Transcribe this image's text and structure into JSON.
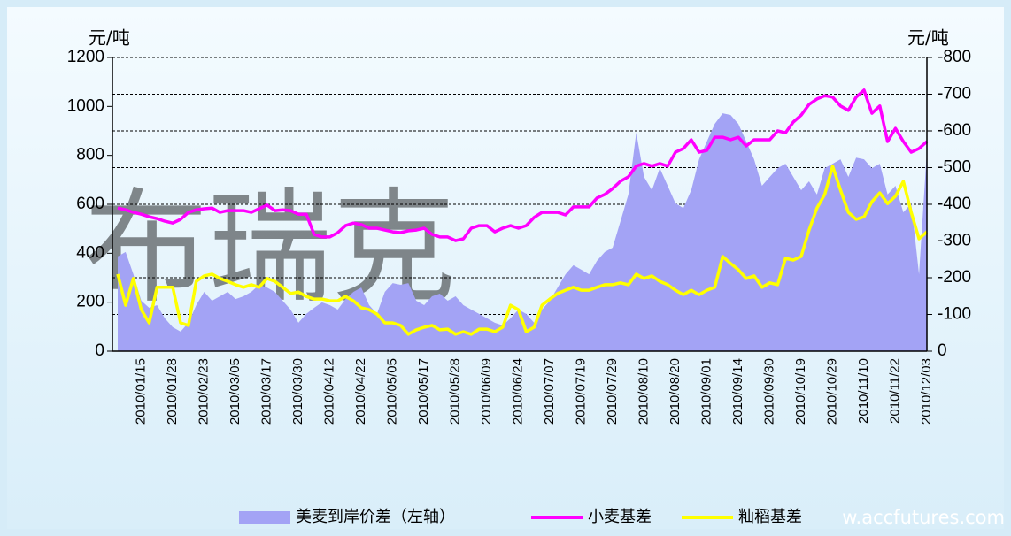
{
  "chart_data": {
    "type": "area-line",
    "y_unit": "元/吨",
    "y2_unit": "元/吨",
    "watermark": "布瑞克",
    "source_watermark": "w.accfutures.com",
    "categories": [
      null,
      null,
      null,
      "2010/01/15",
      null,
      null,
      null,
      "2010/01/28",
      null,
      null,
      null,
      "2010/02/23",
      null,
      null,
      null,
      "2010/03/05",
      null,
      null,
      null,
      "2010/03/17",
      null,
      null,
      null,
      "2010/03/30",
      null,
      null,
      null,
      "2010/04/12",
      null,
      null,
      null,
      "2010/04/22",
      null,
      null,
      null,
      "2010/05/05",
      null,
      null,
      null,
      "2010/05/17",
      null,
      null,
      null,
      "2010/05/28",
      null,
      null,
      null,
      "2010/06/09",
      null,
      null,
      null,
      "2010/06/24",
      null,
      null,
      null,
      "2010/07/07",
      null,
      null,
      null,
      "2010/07/19",
      null,
      null,
      null,
      "2010/07/29",
      null,
      null,
      null,
      "2010/08/10",
      null,
      null,
      null,
      "2010/08/20",
      null,
      null,
      null,
      "2010/09/01",
      null,
      null,
      null,
      "2010/09/14",
      null,
      null,
      null,
      "2010/09/30",
      null,
      null,
      null,
      "2010/10/19",
      null,
      null,
      null,
      "2010/10/29",
      null,
      null,
      null,
      "2010/11/10",
      null,
      null,
      null,
      "2010/11/22",
      null,
      null,
      null,
      "2010/12/03"
    ],
    "series": [
      {
        "name": "美麦到岸价差（左轴）",
        "kind": "area",
        "axis": "y",
        "color": "#a3a3f5",
        "values": [
          387,
          405,
          314,
          206,
          177,
          188,
          134,
          98,
          80,
          116,
          188,
          242,
          206,
          224,
          242,
          213,
          224,
          242,
          271,
          260,
          242,
          206,
          170,
          116,
          152,
          177,
          199,
          188,
          170,
          213,
          242,
          260,
          188,
          152,
          242,
          278,
          271,
          278,
          206,
          188,
          224,
          235,
          206,
          224,
          188,
          170,
          152,
          134,
          116,
          105,
          134,
          170,
          152,
          116,
          170,
          206,
          260,
          314,
          351,
          333,
          314,
          369,
          405,
          423,
          531,
          640,
          893,
          712,
          658,
          748,
          676,
          604,
          585,
          658,
          784,
          857,
          929,
          972,
          965,
          929,
          857,
          784,
          676,
          712,
          748,
          766,
          712,
          658,
          694,
          640,
          748,
          766,
          784,
          712,
          791,
          784,
          748,
          766,
          640,
          676,
          567,
          604,
          314,
          820
        ]
      },
      {
        "name": "小麦基差",
        "kind": "line",
        "axis": "y2",
        "color": "#ff00ff",
        "values": [
          -390,
          -385,
          -378,
          -373,
          -366,
          -361,
          -354,
          -349,
          -359,
          -378,
          -385,
          -388,
          -390,
          -378,
          -383,
          -383,
          -383,
          -378,
          -388,
          -398,
          -383,
          -385,
          -383,
          -373,
          -373,
          -318,
          -311,
          -311,
          -323,
          -342,
          -349,
          -345,
          -335,
          -335,
          -330,
          -325,
          -323,
          -328,
          -330,
          -335,
          -318,
          -311,
          -311,
          -301,
          -306,
          -335,
          -342,
          -342,
          -325,
          -335,
          -342,
          -335,
          -342,
          -364,
          -378,
          -378,
          -378,
          -371,
          -393,
          -393,
          -393,
          -417,
          -427,
          -443,
          -463,
          -475,
          -504,
          -511,
          -504,
          -511,
          -504,
          -542,
          -552,
          -576,
          -542,
          -547,
          -583,
          -583,
          -576,
          -583,
          -559,
          -576,
          -576,
          -576,
          -600,
          -595,
          -624,
          -643,
          -672,
          -687,
          -696,
          -692,
          -668,
          -656,
          -692,
          -711,
          -648,
          -668,
          -571,
          -607,
          -571,
          -542,
          -552,
          -571
        ]
      },
      {
        "name": "籼稻基差",
        "kind": "line",
        "axis": "y2",
        "color": "#ffff00",
        "values": [
          -210,
          -125,
          -198,
          -113,
          -77,
          -174,
          -174,
          -174,
          -77,
          -70,
          -190,
          -205,
          -210,
          -198,
          -190,
          -181,
          -174,
          -181,
          -174,
          -198,
          -190,
          -174,
          -157,
          -161,
          -149,
          -142,
          -142,
          -137,
          -137,
          -149,
          -137,
          -118,
          -113,
          -101,
          -77,
          -77,
          -70,
          -46,
          -58,
          -65,
          -70,
          -58,
          -60,
          -46,
          -53,
          -46,
          -60,
          -60,
          -53,
          -65,
          -125,
          -113,
          -53,
          -65,
          -125,
          -142,
          -157,
          -166,
          -174,
          -166,
          -166,
          -174,
          -181,
          -181,
          -186,
          -181,
          -210,
          -198,
          -205,
          -190,
          -181,
          -166,
          -154,
          -166,
          -154,
          -166,
          -174,
          -258,
          -239,
          -222,
          -198,
          -205,
          -174,
          -186,
          -181,
          -253,
          -248,
          -258,
          -330,
          -390,
          -427,
          -504,
          -439,
          -378,
          -359,
          -366,
          -407,
          -431,
          -402,
          -422,
          -463,
          -378,
          -306,
          -325
        ]
      }
    ],
    "ylim": [
      0,
      1200
    ],
    "yticks": [
      0,
      200,
      400,
      600,
      800,
      1000,
      1200
    ],
    "y2lim": [
      0,
      -800
    ],
    "y2ticks": [
      0,
      -100,
      -200,
      -300,
      -400,
      -500,
      -600,
      -700,
      -800
    ],
    "grid": "y2",
    "legend": "bottom"
  }
}
